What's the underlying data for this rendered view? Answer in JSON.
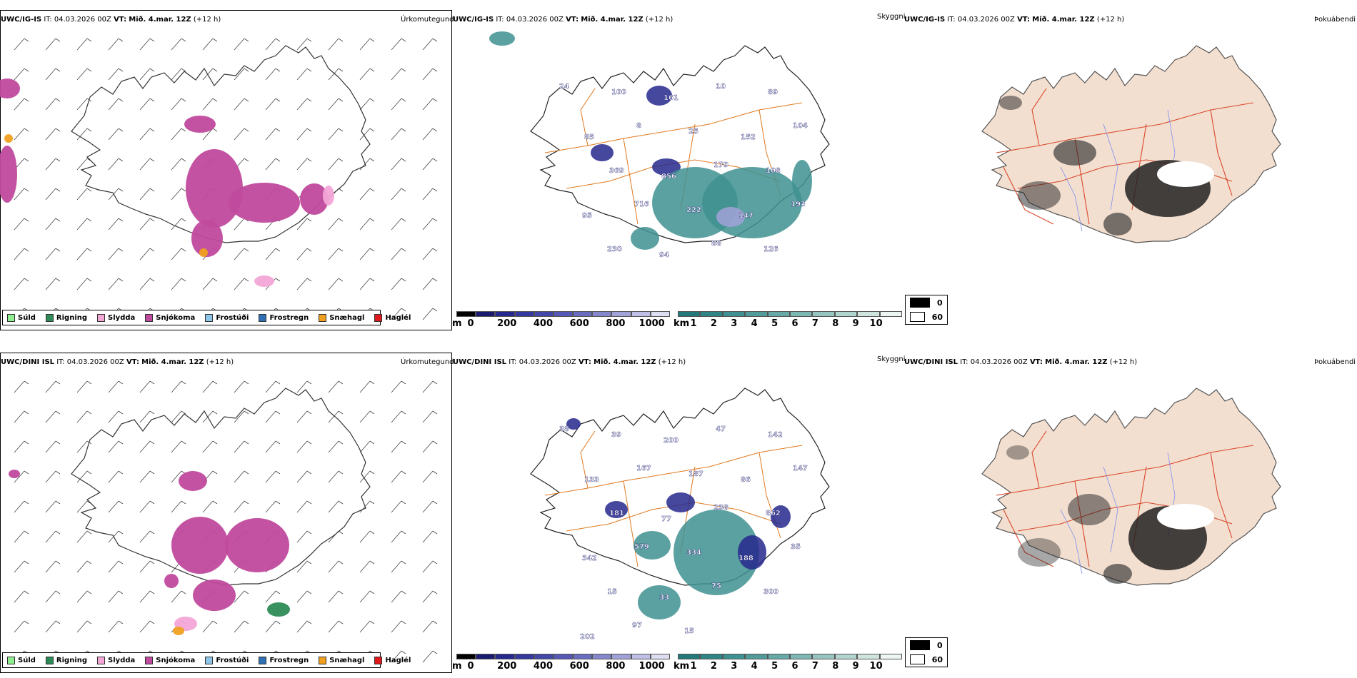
{
  "header": {
    "it_label": "IT:",
    "it_value": "04.03.2026 00Z",
    "vt_label": "VT:",
    "vt_value": "Mið. 4.mar. 12Z",
    "lead": "(+12 h)"
  },
  "rows": [
    {
      "model": "UWC/IG-IS"
    },
    {
      "model": "UWC/DINI ISL"
    }
  ],
  "titles": {
    "precip_type": "Úrkomutegund",
    "visibility": "Skyggni",
    "fog": "Þokuábendi"
  },
  "precip_legend": [
    {
      "label": "Súld",
      "color": "#90ee90"
    },
    {
      "label": "Rigning",
      "color": "#2e8b57"
    },
    {
      "label": "Slydda",
      "color": "#f4a6d7"
    },
    {
      "label": "Snjókoma",
      "color": "#c04a9d"
    },
    {
      "label": "Frostúði",
      "color": "#8ec6ea"
    },
    {
      "label": "Frostregn",
      "color": "#2f6fb3"
    },
    {
      "label": "Snæhagl",
      "color": "#f0a020"
    },
    {
      "label": "Haglél",
      "color": "#e0181b"
    }
  ],
  "visibility_scales": {
    "m_unit": "m",
    "m_ticks": [
      "0",
      "200",
      "400",
      "600",
      "800",
      "1000"
    ],
    "m_colors": [
      "#000000",
      "#1a1a6e",
      "#25288c",
      "#33399e",
      "#4348a8",
      "#5658b5",
      "#6a6cc0",
      "#8587cc",
      "#a1a2d8",
      "#c0c0e6",
      "#dedef2"
    ],
    "km_unit": "km",
    "km_ticks": [
      "1",
      "2",
      "3",
      "4",
      "5",
      "6",
      "7",
      "8",
      "9",
      "10"
    ],
    "km_colors": [
      "#23787a",
      "#2f8484",
      "#3f9090",
      "#519c9b",
      "#66a9a7",
      "#7db7b3",
      "#96c5c0",
      "#b2d4ce",
      "#cfe4de",
      "#ecf5f1"
    ]
  },
  "fog_legend": [
    {
      "value": "0",
      "color": "#000000"
    },
    {
      "value": "60",
      "color": "#ffffff"
    }
  ],
  "visibility_labels": {
    "top": [
      "24",
      "100",
      "161",
      "10",
      "89",
      "85",
      "8",
      "25",
      "152",
      "104",
      "369",
      "856",
      "179",
      "108",
      "95",
      "716",
      "222",
      "147",
      "193",
      "230",
      "94",
      "88",
      "126"
    ],
    "bottom": [
      "38",
      "39",
      "200",
      "47",
      "142",
      "133",
      "167",
      "187",
      "86",
      "147",
      "181",
      "77",
      "238",
      "862",
      "342",
      "579",
      "334",
      "188",
      "35",
      "15",
      "33",
      "75",
      "300",
      "202",
      "97",
      "15"
    ]
  }
}
